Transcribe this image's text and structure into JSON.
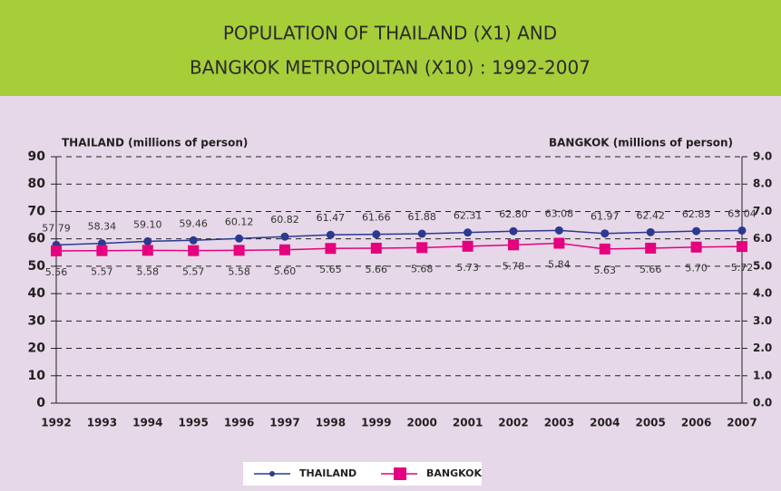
{
  "chart_data": {
    "type": "line",
    "title": [
      "POPULATION OF THAILAND (X1) AND",
      "BANGKOK METROPOLTAN (X10) : 1992-2007"
    ],
    "ylabel": "THAILAND (millions of person)",
    "y2label": "BANGKOK (millions of person)",
    "categories": [
      "1992",
      "1993",
      "1994",
      "1995",
      "1996",
      "1997",
      "1998",
      "1999",
      "2000",
      "2001",
      "2002",
      "2003",
      "2004",
      "2005",
      "2006",
      "2007"
    ],
    "series": [
      {
        "name": "THAILAND",
        "color": "#2b3990",
        "marker": "circle",
        "values": [
          57.79,
          58.34,
          59.1,
          59.46,
          60.12,
          60.82,
          61.47,
          61.66,
          61.88,
          62.31,
          62.8,
          63.08,
          61.97,
          62.42,
          62.83,
          63.04
        ],
        "value_labels": [
          "57.79",
          "58.34",
          "59.10",
          "59.46",
          "60.12",
          "60.82",
          "61.47",
          "61.66",
          "61.88",
          "62.31",
          "62.80",
          "63.08",
          "61.97",
          "62.42",
          "62.83",
          "63.04"
        ]
      },
      {
        "name": "BANGKOK",
        "color": "#e5007e",
        "marker": "square",
        "axis": "y2",
        "values": [
          5.56,
          5.57,
          5.58,
          5.57,
          5.58,
          5.6,
          5.65,
          5.66,
          5.68,
          5.73,
          5.78,
          5.84,
          5.63,
          5.66,
          5.7,
          5.72
        ],
        "value_labels": [
          "5.56",
          "5.57",
          "5.58",
          "5.57",
          "5.58",
          "5.60",
          "5.65",
          "5.66",
          "5.68",
          "5.73",
          "5.78",
          "5.84",
          "5.63",
          "5.66",
          "5.70",
          "5.72"
        ]
      }
    ],
    "ylim": [
      0,
      90
    ],
    "yticks": [
      0,
      10,
      20,
      30,
      40,
      50,
      60,
      70,
      80,
      90
    ],
    "y2lim": [
      0,
      9
    ],
    "y2ticks": [
      {
        "value": 0,
        "label": "0.0"
      },
      {
        "value": 1,
        "label": "1.0"
      },
      {
        "value": 2,
        "label": "2.0"
      },
      {
        "value": 3,
        "label": "3.0"
      },
      {
        "value": 4,
        "label": "4.0"
      },
      {
        "value": 5,
        "label": "5.0"
      },
      {
        "value": 6,
        "label": "6.0"
      },
      {
        "value": 7,
        "label": "7.0"
      },
      {
        "value": 8,
        "label": "8.0"
      },
      {
        "value": 9,
        "label": "9.0"
      }
    ],
    "grid": true,
    "legend": "bottom"
  }
}
